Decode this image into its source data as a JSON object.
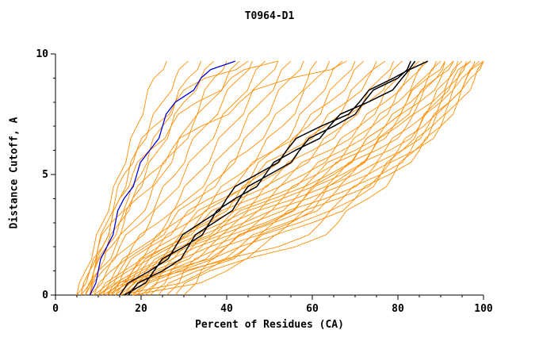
{
  "page": {
    "background": "#ffffff"
  },
  "chart_data": {
    "type": "line",
    "title": "T0964-D1",
    "xlabel": "Percent of Residues (CA)",
    "ylabel": "Distance Cutoff, A",
    "xlim": [
      0,
      100
    ],
    "ylim": [
      0,
      10
    ],
    "x_major_ticks": [
      0,
      20,
      40,
      60,
      80,
      100
    ],
    "x_minor_step": 5,
    "y_major_ticks": [
      0,
      5,
      10
    ],
    "y_minor_step": 1,
    "grid": false,
    "legend": "none",
    "axis_color": "#000000",
    "y_levels": [
      0,
      1,
      2,
      3,
      4,
      5,
      6,
      7,
      8,
      9,
      9.7
    ],
    "series_groups": [
      {
        "name": "predicted-models-orange",
        "color": "#ff8c00",
        "width": 0.9,
        "curves": [
          [
            5,
            7,
            9,
            11,
            13,
            15,
            17,
            19,
            21,
            23,
            26
          ],
          [
            5,
            8,
            11,
            13,
            15,
            17,
            19,
            22,
            25,
            28,
            31
          ],
          [
            6,
            8,
            10,
            13,
            17,
            20,
            22,
            25,
            28,
            31,
            34
          ],
          [
            6,
            9,
            13,
            16,
            18,
            21,
            24,
            27,
            30,
            34,
            37
          ],
          [
            7,
            10,
            14,
            18,
            22,
            25,
            28,
            31,
            34,
            37,
            40
          ],
          [
            7,
            9,
            12,
            15,
            19,
            24,
            28,
            32,
            36,
            40,
            43
          ],
          [
            8,
            11,
            15,
            20,
            24,
            28,
            31,
            35,
            39,
            43,
            46
          ],
          [
            8,
            12,
            17,
            22,
            26,
            30,
            34,
            38,
            42,
            46,
            49
          ],
          [
            9,
            13,
            18,
            24,
            29,
            33,
            37,
            41,
            45,
            49,
            52
          ],
          [
            9,
            14,
            20,
            26,
            31,
            36,
            40,
            44,
            48,
            52,
            55
          ],
          [
            10,
            16,
            22,
            28,
            34,
            39,
            43,
            47,
            51,
            55,
            58
          ],
          [
            10,
            15,
            21,
            27,
            33,
            39,
            45,
            50,
            55,
            59,
            61
          ],
          [
            11,
            17,
            24,
            31,
            37,
            43,
            48,
            53,
            57,
            61,
            64
          ],
          [
            11,
            18,
            26,
            33,
            40,
            46,
            51,
            56,
            60,
            64,
            67
          ],
          [
            12,
            19,
            27,
            35,
            42,
            48,
            54,
            59,
            63,
            67,
            70
          ],
          [
            12,
            16,
            22,
            29,
            36,
            44,
            51,
            58,
            64,
            69,
            72
          ],
          [
            13,
            20,
            28,
            36,
            44,
            51,
            57,
            63,
            68,
            72,
            75
          ],
          [
            13,
            18,
            24,
            31,
            39,
            47,
            55,
            62,
            68,
            73,
            77
          ],
          [
            14,
            21,
            30,
            39,
            47,
            54,
            61,
            67,
            72,
            76,
            79
          ],
          [
            14,
            19,
            26,
            34,
            43,
            52,
            60,
            67,
            73,
            78,
            81
          ],
          [
            15,
            23,
            32,
            41,
            50,
            58,
            65,
            71,
            76,
            80,
            83
          ],
          [
            15,
            20,
            27,
            36,
            46,
            55,
            64,
            71,
            77,
            82,
            85
          ],
          [
            16,
            24,
            34,
            44,
            53,
            61,
            68,
            74,
            79,
            83,
            86
          ],
          [
            16,
            21,
            29,
            39,
            49,
            59,
            67,
            74,
            80,
            84,
            87
          ],
          [
            17,
            26,
            36,
            46,
            56,
            64,
            71,
            77,
            82,
            86,
            89
          ],
          [
            17,
            22,
            30,
            40,
            51,
            61,
            70,
            77,
            83,
            87,
            90
          ],
          [
            18,
            28,
            38,
            49,
            58,
            67,
            74,
            80,
            85,
            89,
            91
          ],
          [
            18,
            23,
            31,
            42,
            53,
            63,
            72,
            79,
            85,
            90,
            93
          ],
          [
            19,
            29,
            40,
            51,
            61,
            70,
            77,
            83,
            88,
            92,
            94
          ],
          [
            20,
            25,
            33,
            44,
            56,
            66,
            75,
            82,
            88,
            92,
            95
          ],
          [
            21,
            31,
            43,
            54,
            64,
            73,
            80,
            86,
            90,
            94,
            96
          ],
          [
            22,
            27,
            36,
            47,
            59,
            69,
            78,
            85,
            90,
            94,
            97
          ],
          [
            24,
            33,
            45,
            57,
            67,
            76,
            83,
            88,
            92,
            95,
            98
          ],
          [
            26,
            30,
            39,
            51,
            63,
            73,
            81,
            87,
            92,
            96,
            99
          ],
          [
            28,
            36,
            48,
            60,
            70,
            78,
            85,
            90,
            94,
            97,
            100
          ],
          [
            30,
            34,
            43,
            55,
            66,
            76,
            84,
            90,
            94,
            98,
            100
          ],
          [
            12,
            30,
            45,
            55,
            62,
            68,
            74,
            79,
            84,
            89,
            93
          ],
          [
            15,
            35,
            52,
            62,
            70,
            76,
            81,
            85,
            89,
            93,
            97
          ],
          [
            10,
            26,
            40,
            50,
            58,
            65,
            71,
            77,
            82,
            87,
            91
          ],
          [
            18,
            40,
            56,
            66,
            73,
            79,
            84,
            88,
            92,
            96,
            100
          ],
          [
            6,
            8,
            10,
            12,
            14,
            16,
            19,
            23,
            28,
            35,
            45
          ],
          [
            7,
            9,
            11,
            13,
            15,
            18,
            22,
            27,
            33,
            41,
            52
          ],
          [
            8,
            10,
            12,
            15,
            18,
            22,
            27,
            34,
            43,
            55,
            68
          ]
        ]
      },
      {
        "name": "highlighted-model-blue",
        "color": "#0000e0",
        "width": 1.3,
        "curves": [
          [
            8,
            10,
            12,
            14,
            16,
            19,
            22,
            25,
            28,
            34,
            42
          ]
        ]
      },
      {
        "name": "highlighted-models-black",
        "color": "#000000",
        "width": 1.5,
        "curves": [
          [
            15,
            22,
            28,
            34,
            40,
            47,
            54,
            62,
            71,
            79,
            84
          ],
          [
            16,
            23,
            30,
            36,
            42,
            49,
            56,
            64,
            73,
            81,
            87
          ],
          [
            17,
            25,
            31,
            37,
            43,
            50,
            57,
            65,
            72,
            80,
            83
          ]
        ]
      }
    ]
  }
}
